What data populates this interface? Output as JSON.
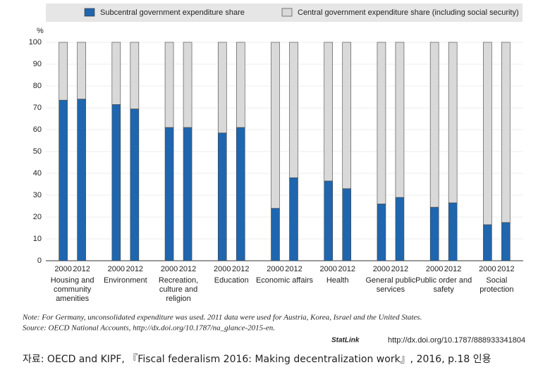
{
  "chart_data": {
    "type": "stacked_bar",
    "y_label": "%",
    "categories": [
      "2000",
      "2012",
      "2000",
      "2012",
      "2000",
      "2012",
      "2000",
      "2012",
      "2000",
      "2012",
      "2000",
      "2012",
      "2000",
      "2012",
      "2000",
      "2012",
      "2000",
      "2012"
    ],
    "groups": [
      "Housing and\ncommunity\namenities",
      "Environment",
      "Recreation,\nculture and\nreligion",
      "Education",
      "Economic affairs",
      "Health",
      "General public\nservices",
      "Public order and\nsafety",
      "Social\nprotection"
    ],
    "series": [
      {
        "name": "Subcentral government expenditure share",
        "color": "#1f66ae",
        "values": [
          73.5,
          74,
          71.5,
          69.5,
          61,
          61,
          58.5,
          61,
          24,
          38,
          36.5,
          33,
          26,
          29,
          24.5,
          26.5,
          16.5,
          17.5
        ]
      },
      {
        "name": "Central government expenditure share (including social security)",
        "color": "#d9d9d9",
        "values": [
          26.5,
          26,
          28.5,
          30.5,
          39,
          39,
          41.5,
          39,
          76,
          62,
          63.5,
          67,
          74,
          71,
          75.5,
          73.5,
          83.5,
          82.5
        ]
      }
    ],
    "ylim": [
      0,
      100
    ],
    "yticks": [
      0,
      10,
      20,
      30,
      40,
      50,
      60,
      70,
      80,
      90,
      100
    ],
    "grid": true,
    "note": "Note: For Germany, unconsolidated expenditure was used. 2011 data were used for Austria, Korea, Israel and the United States.",
    "source": "Source: OECD National Accounts, http://dx.doi.org/10.1787/na_glance-2015-en.",
    "statlink": "StatLink",
    "statlink_url": "http://dx.doi.org/10.1787/888933341804",
    "credit": "자료: OECD and KIPF, 『Fiscal federalism 2016: Making decentralization work』, 2016, p.18 인용"
  }
}
